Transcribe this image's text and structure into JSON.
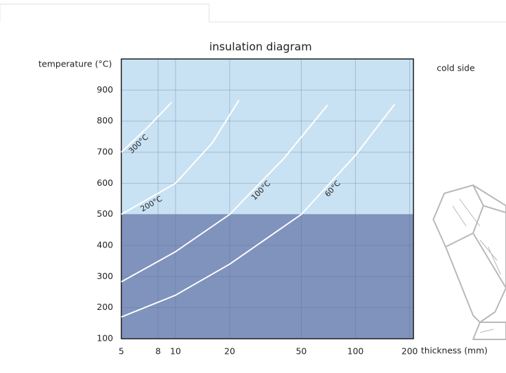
{
  "chart_data": {
    "type": "line",
    "title": "insulation diagram",
    "y_label": "temperature (°C)",
    "x_label": "thickness (mm)",
    "annotation": "cold side",
    "log_x": true,
    "grid": true,
    "xlim": [
      5,
      210
    ],
    "ylim": [
      100,
      1000
    ],
    "xticks": [
      5,
      8,
      10,
      20,
      50,
      100,
      200
    ],
    "yticks": [
      100,
      200,
      300,
      400,
      500,
      600,
      700,
      800,
      900
    ],
    "bands": [
      {
        "from": 500,
        "to": 1000,
        "color": "#c9e2f3"
      },
      {
        "from": 100,
        "to": 500,
        "color": "#7f93bd"
      }
    ],
    "series": [
      {
        "name": "300°C",
        "color": "#ffffff",
        "x": [
          5,
          7,
          9.5
        ],
        "values": [
          700,
          780,
          860
        ]
      },
      {
        "name": "200°C",
        "color": "#ffffff",
        "x": [
          5,
          10,
          16,
          22.5
        ],
        "values": [
          500,
          600,
          730,
          867
        ]
      },
      {
        "name": "100°C",
        "color": "#ffffff",
        "x": [
          5,
          10,
          20,
          40,
          70
        ],
        "values": [
          283,
          380,
          500,
          680,
          852
        ]
      },
      {
        "name": "60°C",
        "color": "#ffffff",
        "x": [
          5,
          10,
          20,
          50,
          100,
          165
        ],
        "values": [
          170,
          240,
          340,
          500,
          690,
          854
        ]
      }
    ]
  }
}
